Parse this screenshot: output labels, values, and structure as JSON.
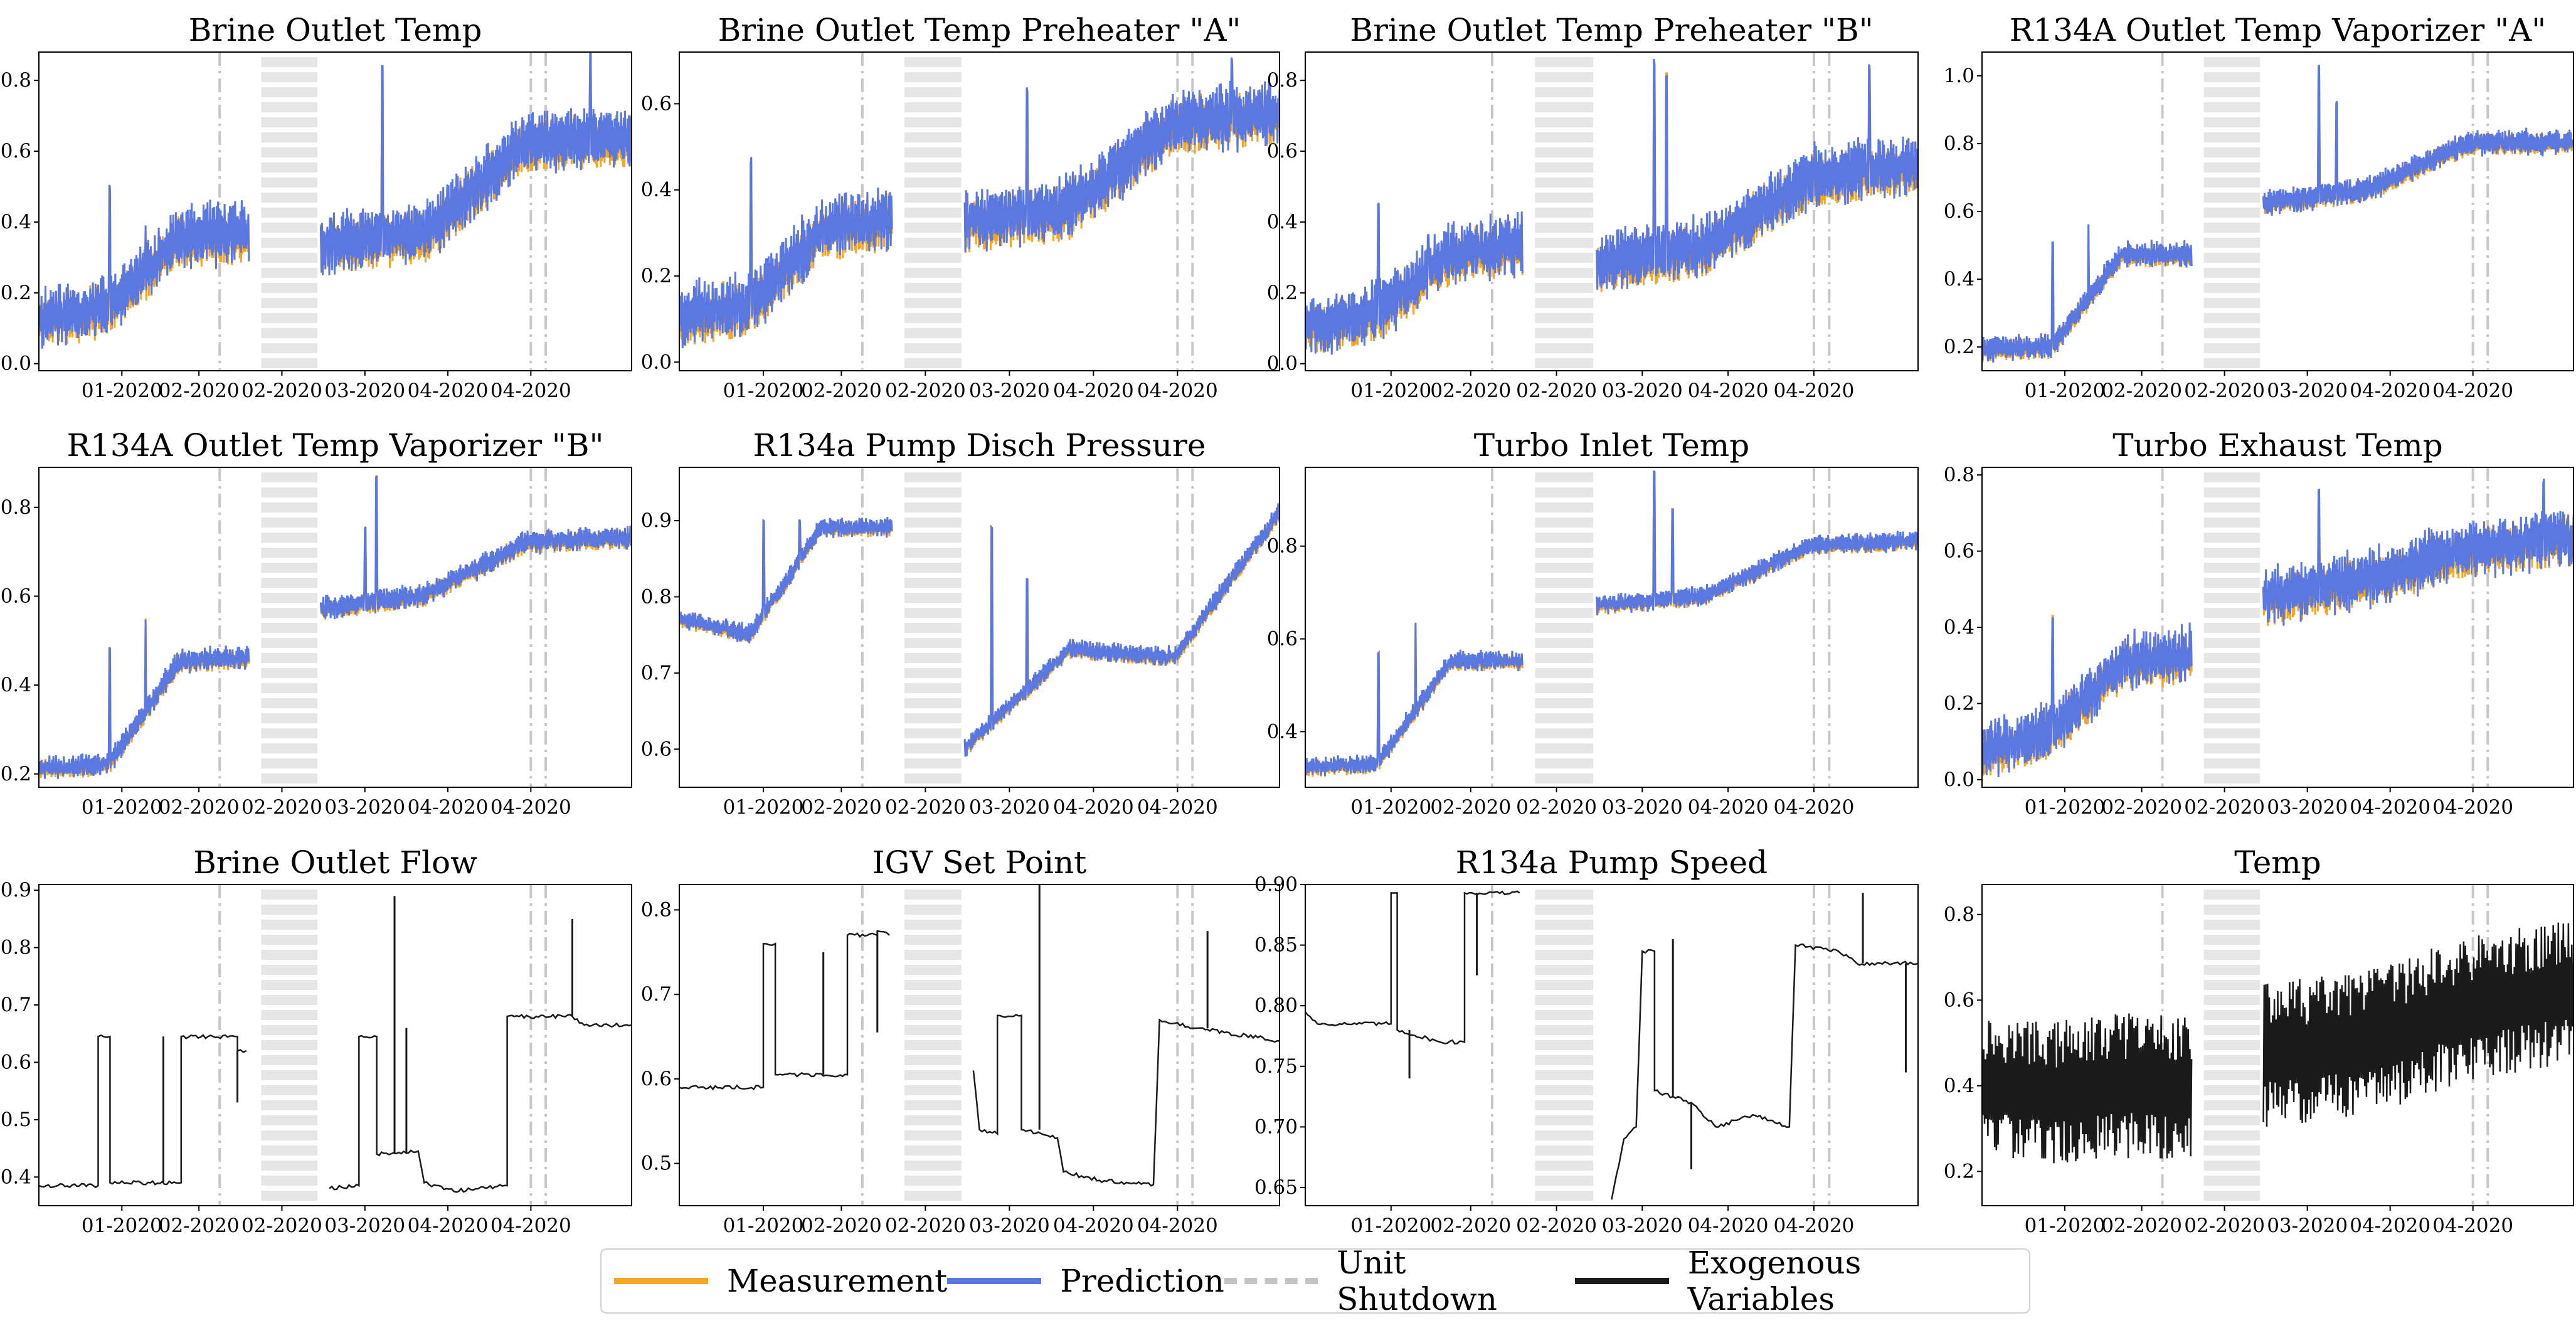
{
  "colors": {
    "measurement": "#f5a623",
    "prediction": "#5a78e0",
    "shutdown": "#c8c8c8",
    "exogenous": "#1a1a1a",
    "frame": "#000000"
  },
  "x_ticks": [
    "01-2020",
    "02-2020",
    "02-2020",
    "03-2020",
    "04-2020",
    "04-2020"
  ],
  "legend": {
    "measurement": "Measurement",
    "prediction": "Prediction",
    "shutdown": "Unit Shutdown",
    "exogenous": "Exogenous Variables"
  },
  "chart_data": [
    {
      "type": "line",
      "title": "Brine Outlet Temp",
      "kind": "predicted",
      "ylim": [
        -0.02,
        0.88
      ],
      "yticks": [
        "0.0",
        "0.2",
        "0.4",
        "0.6",
        "0.8"
      ],
      "yvals": [
        0.0,
        0.2,
        0.4,
        0.6,
        0.8
      ],
      "series": [
        {
          "name": "Measurement"
        },
        {
          "name": "Prediction"
        }
      ],
      "seed": 11,
      "levels": [
        0.12,
        0.15,
        0.35,
        0.36,
        0.33,
        0.36,
        0.62,
        0.63
      ],
      "noise": 0.08,
      "spikes": [
        [
          0.12,
          0.5
        ],
        [
          0.18,
          0.37
        ],
        [
          0.58,
          0.82
        ],
        [
          0.93,
          0.85
        ]
      ]
    },
    {
      "type": "line",
      "title": "Brine Outlet Temp Preheater \"A\"",
      "kind": "predicted",
      "ylim": [
        -0.02,
        0.72
      ],
      "yticks": [
        "0.0",
        "0.2",
        "0.4",
        "0.6"
      ],
      "yvals": [
        0.0,
        0.2,
        0.4,
        0.6
      ],
      "series": [
        {
          "name": "Measurement"
        },
        {
          "name": "Prediction"
        }
      ],
      "seed": 23,
      "levels": [
        0.1,
        0.13,
        0.3,
        0.33,
        0.32,
        0.35,
        0.55,
        0.57
      ],
      "noise": 0.07,
      "spikes": [
        [
          0.12,
          0.46
        ],
        [
          0.58,
          0.62
        ],
        [
          0.92,
          0.7
        ]
      ]
    },
    {
      "type": "line",
      "title": "Brine Outlet Temp Preheater \"B\"",
      "kind": "predicted",
      "ylim": [
        -0.02,
        0.88
      ],
      "yticks": [
        "0.0",
        "0.2",
        "0.4",
        "0.6",
        "0.8"
      ],
      "yvals": [
        0.0,
        0.2,
        0.4,
        0.6,
        0.8
      ],
      "series": [
        {
          "name": "Measurement"
        },
        {
          "name": "Prediction"
        }
      ],
      "seed": 37,
      "levels": [
        0.1,
        0.14,
        0.3,
        0.33,
        0.28,
        0.32,
        0.52,
        0.55
      ],
      "noise": 0.08,
      "spikes": [
        [
          0.12,
          0.43
        ],
        [
          0.2,
          0.36
        ],
        [
          0.57,
          0.84
        ],
        [
          0.59,
          0.82
        ],
        [
          0.92,
          0.84
        ]
      ]
    },
    {
      "type": "line",
      "title": "R134A Outlet Temp Vaporizer \"A\"",
      "kind": "predicted",
      "ylim": [
        0.13,
        1.07
      ],
      "yticks": [
        "0.2",
        "0.4",
        "0.6",
        "0.8",
        "1.0"
      ],
      "yvals": [
        0.2,
        0.4,
        0.6,
        0.8,
        1.0
      ],
      "series": [
        {
          "name": "Measurement"
        },
        {
          "name": "Prediction"
        }
      ],
      "seed": 41,
      "levels": [
        0.19,
        0.2,
        0.47,
        0.47,
        0.62,
        0.66,
        0.8,
        0.8
      ],
      "noise": 0.035,
      "spikes": [
        [
          0.12,
          0.5
        ],
        [
          0.18,
          0.56
        ],
        [
          0.57,
          1.03
        ],
        [
          0.6,
          0.92
        ]
      ]
    },
    {
      "type": "line",
      "title": "R134A Outlet Temp Vaporizer \"B\"",
      "kind": "predicted",
      "ylim": [
        0.17,
        0.89
      ],
      "yticks": [
        "0.2",
        "0.4",
        "0.6",
        "0.8"
      ],
      "yvals": [
        0.2,
        0.4,
        0.6,
        0.8
      ],
      "series": [
        {
          "name": "Measurement"
        },
        {
          "name": "Prediction"
        }
      ],
      "seed": 53,
      "levels": [
        0.21,
        0.22,
        0.45,
        0.46,
        0.57,
        0.6,
        0.72,
        0.73
      ],
      "noise": 0.025,
      "spikes": [
        [
          0.12,
          0.48
        ],
        [
          0.18,
          0.55
        ],
        [
          0.57,
          0.87
        ],
        [
          0.55,
          0.75
        ]
      ]
    },
    {
      "type": "line",
      "title": "R134a Pump Disch Pressure",
      "kind": "predicted",
      "ylim": [
        0.55,
        0.97
      ],
      "yticks": [
        "0.6",
        "0.7",
        "0.8",
        "0.9"
      ],
      "yvals": [
        0.6,
        0.7,
        0.8,
        0.9
      ],
      "series": [
        {
          "name": "Measurement"
        },
        {
          "name": "Prediction"
        }
      ],
      "seed": 67,
      "levels": [
        0.77,
        0.75,
        0.89,
        0.89,
        0.6,
        0.73,
        0.72,
        0.91
      ],
      "noise": 0.012,
      "spikes": [
        [
          0.14,
          0.9
        ],
        [
          0.2,
          0.9
        ],
        [
          0.52,
          0.89
        ],
        [
          0.58,
          0.82
        ]
      ]
    },
    {
      "type": "line",
      "title": "Turbo Inlet Temp",
      "kind": "predicted",
      "ylim": [
        0.28,
        0.97
      ],
      "yticks": [
        "0.4",
        "0.6",
        "0.8"
      ],
      "yvals": [
        0.4,
        0.6,
        0.8
      ],
      "series": [
        {
          "name": "Measurement"
        },
        {
          "name": "Prediction"
        }
      ],
      "seed": 79,
      "levels": [
        0.32,
        0.33,
        0.55,
        0.55,
        0.67,
        0.69,
        0.8,
        0.81
      ],
      "noise": 0.02,
      "spikes": [
        [
          0.12,
          0.57
        ],
        [
          0.18,
          0.63
        ],
        [
          0.57,
          0.96
        ],
        [
          0.6,
          0.88
        ]
      ]
    },
    {
      "type": "line",
      "title": "Turbo Exhaust Temp",
      "kind": "predicted",
      "ylim": [
        -0.02,
        0.82
      ],
      "yticks": [
        "0.0",
        "0.2",
        "0.4",
        "0.6",
        "0.8"
      ],
      "yvals": [
        0.0,
        0.2,
        0.4,
        0.6,
        0.8
      ],
      "series": [
        {
          "name": "Measurement"
        },
        {
          "name": "Prediction"
        }
      ],
      "seed": 83,
      "levels": [
        0.07,
        0.12,
        0.3,
        0.32,
        0.47,
        0.52,
        0.6,
        0.63
      ],
      "noise": 0.07,
      "spikes": [
        [
          0.12,
          0.43
        ],
        [
          0.57,
          0.74
        ],
        [
          0.95,
          0.78
        ]
      ]
    },
    {
      "type": "line",
      "title": "Brine Outlet Flow",
      "kind": "exogenous",
      "ylim": [
        0.35,
        0.91
      ],
      "yticks": [
        "0.4",
        "0.5",
        "0.6",
        "0.7",
        "0.8",
        "0.9"
      ],
      "yvals": [
        0.4,
        0.5,
        0.6,
        0.7,
        0.8,
        0.9
      ],
      "series": [
        {
          "name": "Exogenous Variables"
        }
      ],
      "steps": [
        [
          0.0,
          0.385
        ],
        [
          0.1,
          0.385
        ],
        [
          0.1,
          0.645
        ],
        [
          0.12,
          0.645
        ],
        [
          0.12,
          0.39
        ],
        [
          0.24,
          0.39
        ],
        [
          0.24,
          0.645
        ],
        [
          0.335,
          0.645
        ],
        [
          0.335,
          0.62
        ],
        [
          0.35,
          0.62
        ],
        null,
        [
          0.49,
          0.38
        ],
        [
          0.54,
          0.385
        ],
        [
          0.54,
          0.645
        ],
        [
          0.57,
          0.645
        ],
        [
          0.57,
          0.44
        ],
        [
          0.64,
          0.445
        ],
        [
          0.65,
          0.39
        ],
        [
          0.7,
          0.375
        ],
        [
          0.79,
          0.385
        ],
        [
          0.79,
          0.68
        ],
        [
          0.9,
          0.68
        ],
        [
          0.92,
          0.665
        ],
        [
          1.0,
          0.665
        ]
      ],
      "needles": [
        [
          0.21,
          0.645
        ],
        [
          0.335,
          0.53
        ],
        [
          0.6,
          0.89
        ],
        [
          0.62,
          0.66
        ],
        [
          0.9,
          0.85
        ]
      ]
    },
    {
      "type": "line",
      "title": "IGV Set Point",
      "kind": "exogenous",
      "ylim": [
        0.45,
        0.83
      ],
      "yticks": [
        "0.5",
        "0.6",
        "0.7",
        "0.8"
      ],
      "yvals": [
        0.5,
        0.6,
        0.7,
        0.8
      ],
      "series": [
        {
          "name": "Exogenous Variables"
        }
      ],
      "steps": [
        [
          0.0,
          0.59
        ],
        [
          0.14,
          0.59
        ],
        [
          0.14,
          0.76
        ],
        [
          0.16,
          0.76
        ],
        [
          0.16,
          0.605
        ],
        [
          0.28,
          0.605
        ],
        [
          0.28,
          0.77
        ],
        [
          0.33,
          0.77
        ],
        [
          0.33,
          0.775
        ],
        [
          0.35,
          0.77
        ],
        null,
        [
          0.49,
          0.61
        ],
        [
          0.5,
          0.54
        ],
        [
          0.53,
          0.535
        ],
        [
          0.53,
          0.675
        ],
        [
          0.57,
          0.675
        ],
        [
          0.57,
          0.54
        ],
        [
          0.63,
          0.53
        ],
        [
          0.64,
          0.49
        ],
        [
          0.7,
          0.48
        ],
        [
          0.79,
          0.475
        ],
        [
          0.8,
          0.67
        ],
        [
          0.86,
          0.66
        ],
        [
          1.0,
          0.645
        ]
      ],
      "needles": [
        [
          0.24,
          0.75
        ],
        [
          0.33,
          0.655
        ],
        [
          0.6,
          0.83
        ],
        [
          0.88,
          0.775
        ]
      ]
    },
    {
      "type": "line",
      "title": "R134a Pump Speed",
      "kind": "exogenous",
      "ylim": [
        0.635,
        0.9
      ],
      "yticks": [
        "0.65",
        "0.70",
        "0.75",
        "0.80",
        "0.85",
        "0.90"
      ],
      "yvals": [
        0.65,
        0.7,
        0.75,
        0.8,
        0.85,
        0.9
      ],
      "series": [
        {
          "name": "Exogenous Variables"
        }
      ],
      "steps": [
        [
          0.0,
          0.795
        ],
        [
          0.02,
          0.785
        ],
        [
          0.14,
          0.785
        ],
        [
          0.14,
          0.893
        ],
        [
          0.15,
          0.893
        ],
        [
          0.15,
          0.78
        ],
        [
          0.22,
          0.77
        ],
        [
          0.26,
          0.77
        ],
        [
          0.26,
          0.893
        ],
        [
          0.35,
          0.893
        ],
        null,
        [
          0.5,
          0.64
        ],
        [
          0.52,
          0.69
        ],
        [
          0.54,
          0.7
        ],
        [
          0.55,
          0.845
        ],
        [
          0.57,
          0.845
        ],
        [
          0.57,
          0.73
        ],
        [
          0.6,
          0.725
        ],
        [
          0.63,
          0.72
        ],
        [
          0.67,
          0.7
        ],
        [
          0.73,
          0.71
        ],
        [
          0.79,
          0.7
        ],
        [
          0.8,
          0.85
        ],
        [
          0.87,
          0.845
        ],
        [
          0.9,
          0.835
        ],
        [
          1.0,
          0.835
        ]
      ],
      "needles": [
        [
          0.17,
          0.74
        ],
        [
          0.28,
          0.825
        ],
        [
          0.6,
          0.855
        ],
        [
          0.63,
          0.665
        ],
        [
          0.91,
          0.893
        ],
        [
          0.98,
          0.745
        ]
      ]
    },
    {
      "type": "line",
      "title": "Temp",
      "kind": "exogenous_noisy",
      "ylim": [
        0.12,
        0.87
      ],
      "yticks": [
        "0.2",
        "0.4",
        "0.6",
        "0.8"
      ],
      "yvals": [
        0.2,
        0.4,
        0.6,
        0.8
      ],
      "series": [
        {
          "name": "Exogenous Variables"
        }
      ],
      "seed": 97,
      "levels": [
        0.4,
        0.38,
        0.4,
        0.4,
        0.47,
        0.5,
        0.58,
        0.62
      ],
      "noise": 0.17
    }
  ]
}
